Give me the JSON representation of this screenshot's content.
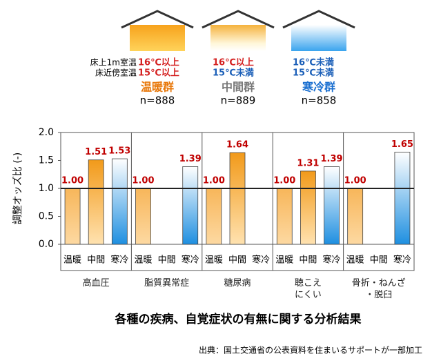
{
  "header": {
    "row_labels": [
      "床上1m室温",
      "床近傍室温"
    ],
    "groups": [
      {
        "upper": "16℃以上",
        "lower": "15℃以上",
        "name": "温暖群",
        "n": "n=888"
      },
      {
        "upper": "16℃以上",
        "lower": "15℃未満",
        "name": "中間群",
        "n": "n=889"
      },
      {
        "upper": "16℃未満",
        "lower": "15℃未満",
        "name": "寒冷群",
        "n": "n=858"
      }
    ]
  },
  "chart_data": {
    "type": "bar",
    "y_label": "調整オッズ比 (-)",
    "title": "各種の疾病、自覚症状の有無に関する分析結果",
    "categories": [
      "高血圧",
      "脂質異常症",
      "糖尿病",
      "聴こえ\nにくい",
      "骨折・ねんざ\n・脱臼"
    ],
    "series": [
      {
        "name": "温暖",
        "color": "#f7b65a",
        "values": [
          1,
          1,
          1,
          1,
          1
        ],
        "value_labels": [
          "1.00",
          "1.00",
          "1.00",
          "1.00",
          "1.00"
        ]
      },
      {
        "name": "中間",
        "color": "#f29a1a",
        "values": [
          1.51,
          null,
          1.64,
          1.31,
          null
        ],
        "value_labels": [
          "1.51",
          null,
          "1.64",
          "1.31",
          null
        ]
      },
      {
        "name": "寒冷",
        "color": "#1e8fe0",
        "values": [
          1.53,
          1.39,
          null,
          1.39,
          1.65
        ],
        "value_labels": [
          "1.53",
          "1.39",
          null,
          "1.39",
          "1.65"
        ]
      }
    ],
    "ylim": [
      0,
      2
    ],
    "yticks": [
      {
        "value": 0,
        "label": "0.0"
      },
      0.5,
      {
        "value": 1,
        "label": "1.0"
      },
      1.5,
      {
        "value": 2,
        "label": "2.0"
      }
    ],
    "reference_line": 1
  },
  "source": "出典：国土交通省の公表資料を住まいるサポートが一部加工"
}
